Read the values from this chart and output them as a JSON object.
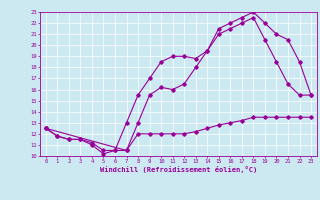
{
  "xlabel": "Windchill (Refroidissement éolien,°C)",
  "background_color": "#cce8f0",
  "line_color": "#990099",
  "xlim": [
    -0.5,
    23.5
  ],
  "ylim": [
    10,
    23
  ],
  "xticks": [
    0,
    1,
    2,
    3,
    4,
    5,
    6,
    7,
    8,
    9,
    10,
    11,
    12,
    13,
    14,
    15,
    16,
    17,
    18,
    19,
    20,
    21,
    22,
    23
  ],
  "yticks": [
    10,
    11,
    12,
    13,
    14,
    15,
    16,
    17,
    18,
    19,
    20,
    21,
    22,
    23
  ],
  "series1_x": [
    0,
    1,
    2,
    3,
    4,
    5,
    6,
    7,
    8,
    9,
    10,
    11,
    12,
    13,
    14,
    15,
    16,
    17,
    18,
    19,
    20,
    21,
    22,
    23
  ],
  "series1_y": [
    12.5,
    11.8,
    11.5,
    11.5,
    11.0,
    10.2,
    10.5,
    10.5,
    12.0,
    12.0,
    12.0,
    12.0,
    12.0,
    12.2,
    12.5,
    12.8,
    13.0,
    13.2,
    13.5,
    13.5,
    13.5,
    13.5,
    13.5,
    13.5
  ],
  "series2_x": [
    0,
    1,
    2,
    3,
    4,
    5,
    6,
    7,
    8,
    9,
    10,
    11,
    12,
    13,
    14,
    15,
    16,
    17,
    18,
    19,
    20,
    21,
    22,
    23
  ],
  "series2_y": [
    12.5,
    11.8,
    11.5,
    11.5,
    11.2,
    10.5,
    10.5,
    13.0,
    15.5,
    17.0,
    18.5,
    19.0,
    19.0,
    18.8,
    19.5,
    21.0,
    21.5,
    22.0,
    22.5,
    20.5,
    18.5,
    16.5,
    15.5,
    15.5
  ],
  "series3_x": [
    0,
    7,
    8,
    9,
    10,
    11,
    12,
    13,
    14,
    15,
    16,
    17,
    18,
    19,
    20,
    21,
    22,
    23
  ],
  "series3_y": [
    12.5,
    10.5,
    13.0,
    15.5,
    16.2,
    16.0,
    16.5,
    18.0,
    19.5,
    21.5,
    22.0,
    22.5,
    23.0,
    22.0,
    21.0,
    20.5,
    18.5,
    15.5
  ]
}
